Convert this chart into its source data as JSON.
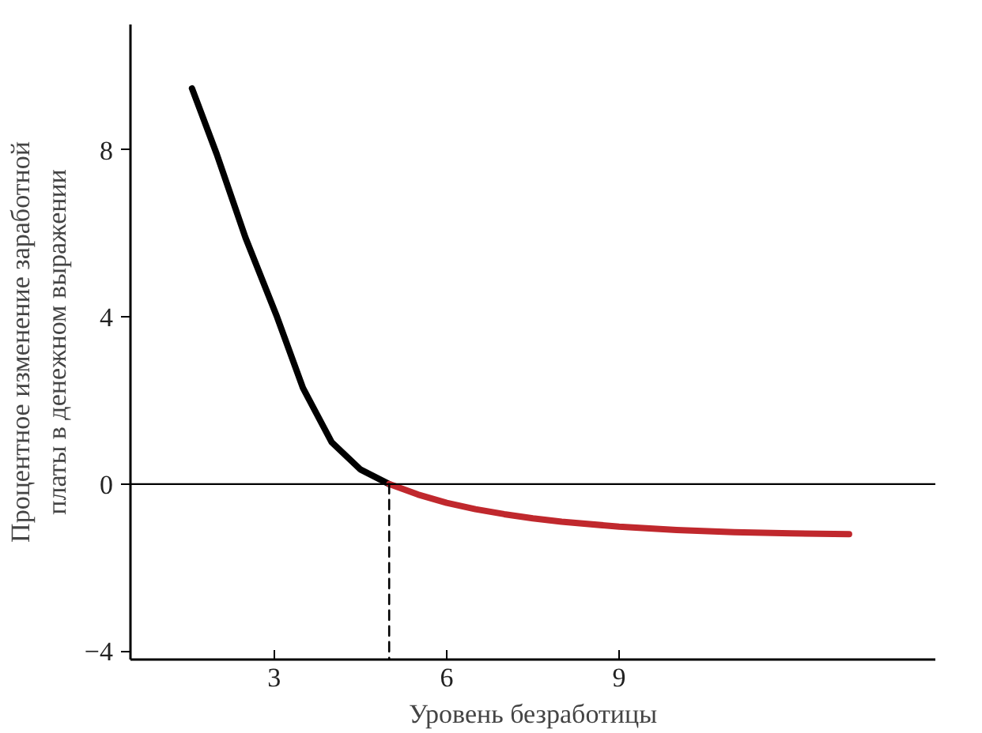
{
  "chart_data": {
    "type": "line",
    "xlabel": "Уровень безработицы",
    "ylabel": "Процентное изменение заработной\nплаты в денежном выражении",
    "xlim": [
      0.5,
      14.5
    ],
    "ylim": [
      -4.2,
      11
    ],
    "xticks": [
      3,
      6,
      9
    ],
    "yticks": [
      -4,
      0,
      4,
      8
    ],
    "grid": false,
    "series": [
      {
        "color": "#000000",
        "x": [
          1.57,
          2.0,
          2.5,
          3.05,
          3.5,
          4.0,
          4.5,
          5.0
        ],
        "values": [
          9.47,
          7.9,
          5.9,
          4.0,
          2.3,
          1.0,
          0.35,
          0
        ]
      },
      {
        "color": "#c0282d",
        "x": [
          5.0,
          5.5,
          6.0,
          6.5,
          7.0,
          7.5,
          8.0,
          9,
          10,
          11,
          12,
          13
        ],
        "values": [
          0,
          -0.25,
          -0.45,
          -0.6,
          -0.72,
          -0.82,
          -0.9,
          -1.02,
          -1.1,
          -1.15,
          -1.18,
          -1.2
        ]
      },
      {
        "color": "#000000",
        "line_style": "dashed",
        "x": [
          5,
          5
        ],
        "values": [
          0,
          -4.2
        ]
      }
    ],
    "ref_lines": [
      {
        "axis": "y",
        "value": 0,
        "color": "#000000"
      }
    ]
  }
}
